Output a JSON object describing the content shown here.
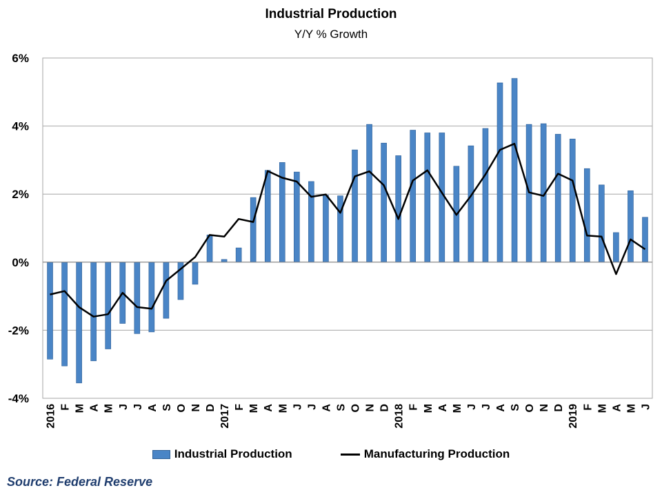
{
  "chart_data": {
    "type": "bar",
    "title": "Industrial Production",
    "subtitle": "Y/Y % Growth",
    "categories": [
      "2016",
      "F",
      "M",
      "A",
      "M",
      "J",
      "J",
      "A",
      "S",
      "O",
      "N",
      "D",
      "2017",
      "F",
      "M",
      "A",
      "M",
      "J",
      "J",
      "A",
      "S",
      "O",
      "N",
      "D",
      "2018",
      "F",
      "M",
      "A",
      "M",
      "J",
      "J",
      "A",
      "S",
      "O",
      "N",
      "D",
      "2019",
      "F",
      "M",
      "A",
      "M",
      "J"
    ],
    "series": [
      {
        "name": "Industrial Production",
        "kind": "bar",
        "color": "#4a85c6",
        "values": [
          -2.85,
          -3.05,
          -3.55,
          -2.9,
          -2.55,
          -1.8,
          -2.1,
          -2.05,
          -1.65,
          -1.1,
          -0.65,
          0.8,
          0.08,
          0.42,
          1.9,
          2.7,
          2.93,
          2.65,
          2.37,
          1.97,
          1.95,
          3.3,
          4.05,
          3.5,
          3.13,
          3.88,
          3.8,
          3.8,
          2.82,
          3.42,
          3.93,
          5.27,
          5.4,
          4.05,
          4.07,
          3.76,
          3.62,
          2.75,
          2.27,
          0.87,
          2.1,
          1.32
        ]
      },
      {
        "name": "Manufacturing Production",
        "kind": "line",
        "color": "#000000",
        "values": [
          -0.95,
          -0.85,
          -1.32,
          -1.6,
          -1.53,
          -0.9,
          -1.32,
          -1.37,
          -0.55,
          -0.2,
          0.15,
          0.8,
          0.75,
          1.27,
          1.18,
          2.68,
          2.48,
          2.37,
          1.92,
          1.99,
          1.45,
          2.52,
          2.67,
          2.26,
          1.27,
          2.4,
          2.7,
          2.04,
          1.39,
          1.95,
          2.58,
          3.3,
          3.48,
          2.05,
          1.95,
          2.6,
          2.4,
          0.78,
          0.75,
          -0.35,
          0.67,
          0.38
        ]
      }
    ],
    "ylim": [
      -4,
      6
    ],
    "yticks": [
      -4,
      -2,
      0,
      2,
      4,
      6
    ],
    "ytick_labels": [
      "-4%",
      "-2%",
      "0%",
      "2%",
      "4%",
      "6%"
    ],
    "grid": true,
    "legend": "bottom"
  },
  "source": "Source: Federal Reserve"
}
